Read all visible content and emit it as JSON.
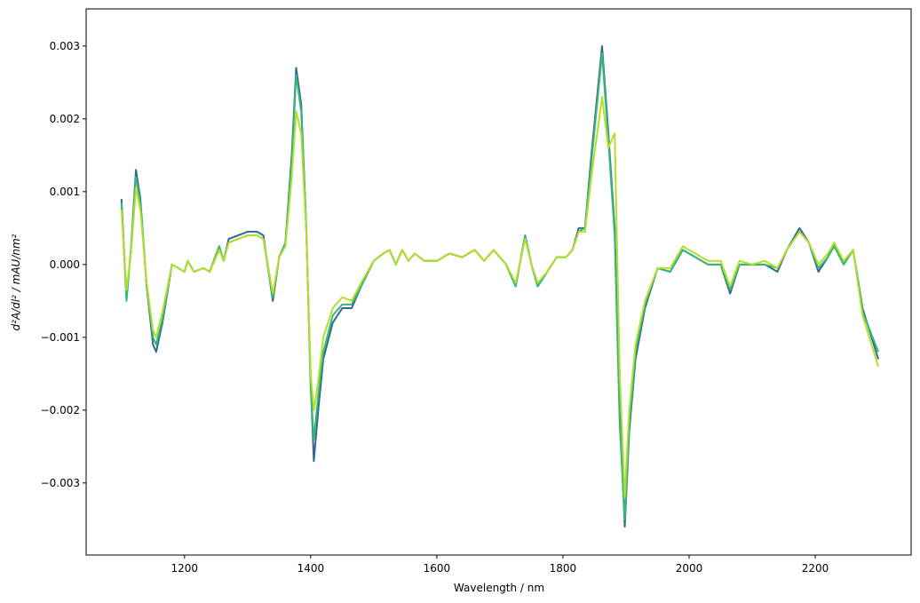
{
  "chart_data": {
    "type": "line",
    "xlabel": "Wavelength / nm",
    "ylabel": "d²A/dl² / mAU/nm²",
    "xlim": [
      1044,
      2352
    ],
    "xticks": [
      1200,
      1400,
      1600,
      1800,
      2000,
      2200
    ],
    "ylim": [
      -0.00399,
      0.00351
    ],
    "yticks": [
      {
        "value": -0.003,
        "label": "−0.003"
      },
      {
        "value": -0.002,
        "label": "−0.002"
      },
      {
        "value": -0.001,
        "label": "−0.001"
      },
      {
        "value": 0,
        "label": "0.000"
      },
      {
        "value": 0.001,
        "label": "0.001"
      },
      {
        "value": 0.002,
        "label": "0.002"
      },
      {
        "value": 0.003,
        "label": "0.003"
      }
    ],
    "grid": false,
    "x": [
      1100,
      1108,
      1115,
      1123,
      1130,
      1140,
      1150,
      1155,
      1165,
      1180,
      1190,
      1200,
      1205,
      1215,
      1230,
      1240,
      1255,
      1262,
      1270,
      1285,
      1300,
      1315,
      1325,
      1340,
      1350,
      1360,
      1370,
      1377,
      1385,
      1393,
      1400,
      1405,
      1412,
      1420,
      1435,
      1450,
      1465,
      1480,
      1500,
      1515,
      1525,
      1535,
      1545,
      1555,
      1565,
      1580,
      1600,
      1620,
      1640,
      1660,
      1675,
      1690,
      1710,
      1725,
      1740,
      1750,
      1760,
      1775,
      1790,
      1805,
      1815,
      1825,
      1835,
      1845,
      1862,
      1872,
      1882,
      1890,
      1898,
      1905,
      1915,
      1930,
      1950,
      1970,
      1990,
      2010,
      2030,
      2050,
      2065,
      2080,
      2100,
      2120,
      2140,
      2155,
      2175,
      2190,
      2205,
      2220,
      2230,
      2245,
      2260,
      2275,
      2300
    ],
    "series": [
      {
        "color": "#31688e",
        "values": [
          0.0009,
          -0.00045,
          0.0002,
          0.0013,
          0.0009,
          -0.0003,
          -0.0011,
          -0.0012,
          -0.0008,
          0.0,
          -5e-05,
          -0.0001,
          5e-05,
          -0.0001,
          -5e-05,
          -0.0001,
          0.00025,
          5e-05,
          0.00035,
          0.0004,
          0.00045,
          0.00045,
          0.0004,
          -0.0005,
          0.0001,
          0.0003,
          0.0015,
          0.0027,
          0.0022,
          0.0005,
          -0.0016,
          -0.0027,
          -0.002,
          -0.0013,
          -0.0008,
          -0.0006,
          -0.0006,
          -0.0003,
          5e-05,
          0.00015,
          0.0002,
          0.0,
          0.0002,
          5e-05,
          0.00015,
          5e-05,
          5e-05,
          0.00015,
          0.0001,
          0.0002,
          5e-05,
          0.0002,
          0.0,
          -0.0003,
          0.0004,
          0.0,
          -0.0003,
          -0.0001,
          0.0001,
          0.0001,
          0.0002,
          0.0005,
          0.0005,
          0.0015,
          0.003,
          0.0018,
          0.0005,
          -0.002,
          -0.0036,
          -0.0023,
          -0.0013,
          -0.0006,
          -5e-05,
          -0.0001,
          0.0002,
          0.0001,
          0.0,
          0.0,
          -0.0004,
          0.0,
          0.0,
          0.0,
          -0.0001,
          0.0002,
          0.0005,
          0.0003,
          -0.0001,
          0.0001,
          0.0003,
          0.0,
          0.0002,
          -0.0006,
          -0.0013
        ]
      },
      {
        "color": "#35b779",
        "values": [
          0.00085,
          -0.0005,
          0.0002,
          0.0012,
          0.00085,
          -0.0003,
          -0.001,
          -0.0011,
          -0.00075,
          0.0,
          -5e-05,
          -0.0001,
          5e-05,
          -0.0001,
          -5e-05,
          -0.0001,
          0.00025,
          5e-05,
          0.0003,
          0.00035,
          0.0004,
          0.0004,
          0.00035,
          -0.00045,
          0.0001,
          0.0003,
          0.0014,
          0.0026,
          0.0021,
          0.0005,
          -0.0017,
          -0.0024,
          -0.0018,
          -0.0012,
          -0.0007,
          -0.00055,
          -0.00055,
          -0.0003,
          5e-05,
          0.00015,
          0.0002,
          0.0,
          0.0002,
          5e-05,
          0.00015,
          5e-05,
          5e-05,
          0.00015,
          0.0001,
          0.0002,
          5e-05,
          0.0002,
          0.0,
          -0.0003,
          0.0004,
          0.0,
          -0.0003,
          -0.0001,
          0.0001,
          0.0001,
          0.0002,
          0.00045,
          0.0005,
          0.0014,
          0.0029,
          0.0017,
          0.0004,
          -0.0022,
          -0.0035,
          -0.0022,
          -0.0012,
          -0.00055,
          -5e-05,
          -0.0001,
          0.0002,
          0.0001,
          0.0,
          0.0,
          -0.00035,
          0.0,
          0.0,
          0.0,
          -5e-05,
          0.0002,
          0.00045,
          0.0003,
          -5e-05,
          0.0001,
          0.00025,
          0.0,
          0.0002,
          -0.00065,
          -0.0012
        ]
      },
      {
        "color": "#b5de2b",
        "values": [
          0.00075,
          -0.00035,
          0.00015,
          0.00105,
          0.00075,
          -0.00025,
          -0.0009,
          -0.001,
          -0.00065,
          0.0,
          -5e-05,
          -0.0001,
          5e-05,
          -0.0001,
          -5e-05,
          -0.0001,
          0.0002,
          5e-05,
          0.0003,
          0.00035,
          0.0004,
          0.0004,
          0.00035,
          -0.0004,
          0.0001,
          0.00025,
          0.0012,
          0.0021,
          0.0018,
          0.00045,
          -0.0015,
          -0.002,
          -0.0016,
          -0.001,
          -0.0006,
          -0.00045,
          -0.0005,
          -0.00025,
          5e-05,
          0.00015,
          0.0002,
          0.0,
          0.0002,
          5e-05,
          0.00015,
          5e-05,
          5e-05,
          0.00015,
          0.0001,
          0.0002,
          5e-05,
          0.0002,
          0.0,
          -0.00025,
          0.00035,
          0.0,
          -0.00025,
          -0.0001,
          0.0001,
          0.0001,
          0.0002,
          0.00045,
          0.00045,
          0.0012,
          0.0023,
          0.0016,
          0.0018,
          -0.0015,
          -0.0032,
          -0.002,
          -0.0011,
          -0.0005,
          -5e-05,
          -5e-05,
          0.00025,
          0.00015,
          5e-05,
          5e-05,
          -0.0003,
          5e-05,
          0.0,
          5e-05,
          -5e-05,
          0.0002,
          0.00045,
          0.0003,
          0.0,
          0.00015,
          0.0003,
          5e-05,
          0.0002,
          -0.0007,
          -0.0014
        ]
      }
    ]
  }
}
